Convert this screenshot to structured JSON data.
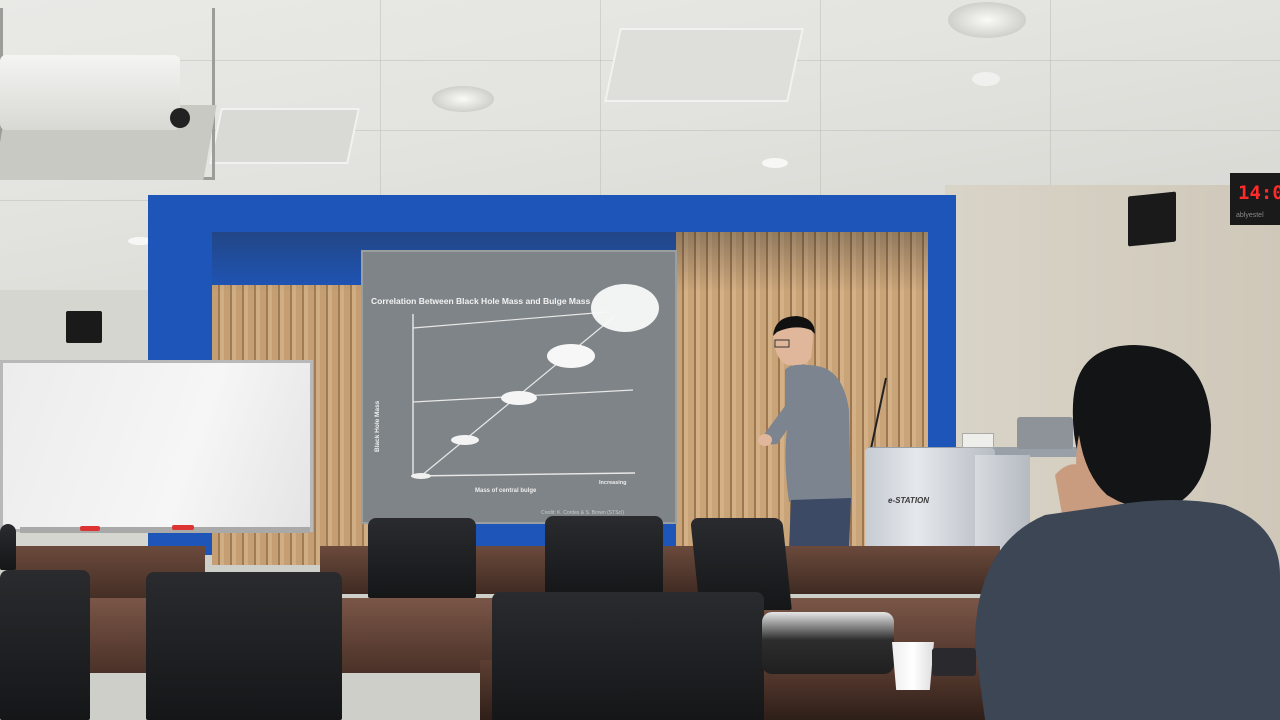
{
  "scene": {
    "description_type": "lecture-hall-photo"
  },
  "slide": {
    "title": "Correlation Between Black Hole Mass and Bulge Mass",
    "x_axis_label": "Mass of central bulge",
    "x_axis_end_label": "Increasing",
    "y_axis_label": "Black Hole Mass",
    "credit": "Credit: K. Cordes & S. Brown (STScI)"
  },
  "clock": {
    "time": "14:0",
    "brand": "ablyestel"
  },
  "podium": {
    "label": "e-STATION"
  },
  "colors": {
    "blue_frame": "#1e55b8",
    "slide_bg": "#7e8487",
    "clock_digits": "#ff2a2a"
  }
}
